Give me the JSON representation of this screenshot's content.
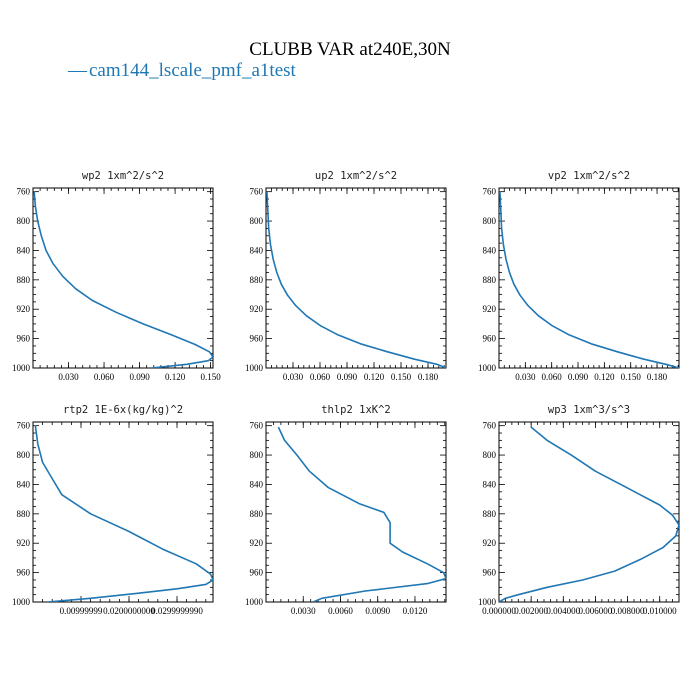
{
  "figure": {
    "title": "CLUBB VAR at240E,30N",
    "legend": {
      "label": "cam144_lscale_pmf_a1test",
      "color": "#1f77b4",
      "symbol": "—"
    }
  },
  "chart_data": [
    {
      "type": "line",
      "title": "wp2   1xm^2/s^2",
      "xlim": [
        0,
        0.152
      ],
      "ylim": [
        1000,
        755
      ],
      "xticks": [
        0.03,
        0.06,
        0.09,
        0.12,
        0.15
      ],
      "xtick_labels": [
        "0.030",
        "0.060",
        "0.090",
        "0.120",
        "0.150"
      ],
      "yticks": [
        760,
        800,
        840,
        880,
        920,
        960,
        1000
      ],
      "x": [
        0.001,
        0.002,
        0.004,
        0.007,
        0.011,
        0.017,
        0.025,
        0.036,
        0.05,
        0.07,
        0.093,
        0.117,
        0.137,
        0.149,
        0.152,
        0.148,
        0.13,
        0.1
      ],
      "y": [
        760,
        780,
        800,
        820,
        840,
        858,
        875,
        892,
        908,
        924,
        940,
        955,
        968,
        978,
        985,
        990,
        995,
        1000
      ]
    },
    {
      "type": "line",
      "title": "up2   1xm^2/s^2",
      "xlim": [
        0,
        0.2
      ],
      "ylim": [
        1000,
        755
      ],
      "xticks": [
        0.03,
        0.06,
        0.09,
        0.12,
        0.15,
        0.18
      ],
      "xtick_labels": [
        "0.030",
        "0.060",
        "0.090",
        "0.120",
        "0.150",
        "0.180"
      ],
      "yticks": [
        760,
        800,
        840,
        880,
        920,
        960,
        1000
      ],
      "x": [
        0.001,
        0.002,
        0.003,
        0.005,
        0.008,
        0.012,
        0.017,
        0.024,
        0.033,
        0.045,
        0.06,
        0.08,
        0.105,
        0.135,
        0.165,
        0.19,
        0.2
      ],
      "y": [
        760,
        785,
        810,
        832,
        852,
        870,
        886,
        901,
        915,
        929,
        942,
        955,
        967,
        978,
        988,
        995,
        1000
      ]
    },
    {
      "type": "line",
      "title": "vp2   1xm^2/s^2",
      "xlim": [
        0,
        0.205
      ],
      "ylim": [
        1000,
        755
      ],
      "xticks": [
        0.03,
        0.06,
        0.09,
        0.12,
        0.15,
        0.18
      ],
      "xtick_labels": [
        "0.030",
        "0.060",
        "0.090",
        "0.120",
        "0.150",
        "0.180"
      ],
      "yticks": [
        760,
        800,
        840,
        880,
        920,
        960,
        1000
      ],
      "x": [
        0.001,
        0.002,
        0.003,
        0.005,
        0.008,
        0.012,
        0.017,
        0.024,
        0.033,
        0.045,
        0.06,
        0.08,
        0.105,
        0.135,
        0.165,
        0.19,
        0.205
      ],
      "y": [
        760,
        785,
        810,
        832,
        852,
        870,
        886,
        901,
        915,
        929,
        942,
        955,
        967,
        978,
        988,
        995,
        1000
      ]
    },
    {
      "type": "line",
      "title": "rtp2   1E-6x(kg/kg)^2",
      "xlim": [
        0,
        0.0375
      ],
      "ylim": [
        1000,
        755
      ],
      "xticks": [
        0.01,
        0.02,
        0.03
      ],
      "xtick_labels": [
        "0.00999999",
        "0.0200000000",
        "0.0299999990"
      ],
      "yticks": [
        760,
        800,
        840,
        880,
        920,
        960,
        1000
      ],
      "x": [
        0.0005,
        0.001,
        0.002,
        0.004,
        0.006,
        0.012,
        0.02,
        0.027,
        0.034,
        0.037,
        0.0375,
        0.036,
        0.03,
        0.022,
        0.012,
        0.003
      ],
      "y": [
        760,
        785,
        810,
        832,
        854,
        880,
        904,
        928,
        948,
        962,
        970,
        976,
        982,
        988,
        995,
        1000
      ]
    },
    {
      "type": "line",
      "title": "thlp2   1xK^2",
      "xlim": [
        0,
        0.0145
      ],
      "ylim": [
        1000,
        755
      ],
      "xticks": [
        0.003,
        0.006,
        0.009,
        0.012
      ],
      "xtick_labels": [
        "0.0030",
        "0.0060",
        "0.0090",
        "0.0120"
      ],
      "yticks": [
        760,
        800,
        840,
        880,
        920,
        960,
        1000
      ],
      "x": [
        0.001,
        0.0015,
        0.0025,
        0.0035,
        0.005,
        0.0075,
        0.0095,
        0.01,
        0.01,
        0.011,
        0.013,
        0.0143,
        0.0145,
        0.013,
        0.008,
        0.0045,
        0.0038
      ],
      "y": [
        762,
        780,
        800,
        822,
        844,
        866,
        878,
        892,
        920,
        932,
        948,
        960,
        968,
        975,
        985,
        995,
        1000
      ]
    },
    {
      "type": "line",
      "title": "wp3   1xm^3/s^3",
      "xlim": [
        0,
        0.0112
      ],
      "ylim": [
        1000,
        755
      ],
      "xticks": [
        0.0,
        0.002,
        0.004,
        0.006,
        0.008,
        0.01
      ],
      "xtick_labels": [
        "0.000000",
        "0.002000",
        "0.004000",
        "0.006000",
        "0.008000",
        "0.010000"
      ],
      "yticks": [
        760,
        800,
        840,
        880,
        920,
        960,
        1000
      ],
      "x": [
        0.002,
        0.003,
        0.0045,
        0.006,
        0.008,
        0.01,
        0.0108,
        0.0112,
        0.011,
        0.0102,
        0.0088,
        0.0072,
        0.0052,
        0.003,
        0.0012,
        0.0004,
        0.0
      ],
      "y": [
        762,
        780,
        800,
        822,
        845,
        868,
        882,
        895,
        910,
        926,
        942,
        958,
        970,
        980,
        990,
        995,
        1000
      ]
    }
  ]
}
